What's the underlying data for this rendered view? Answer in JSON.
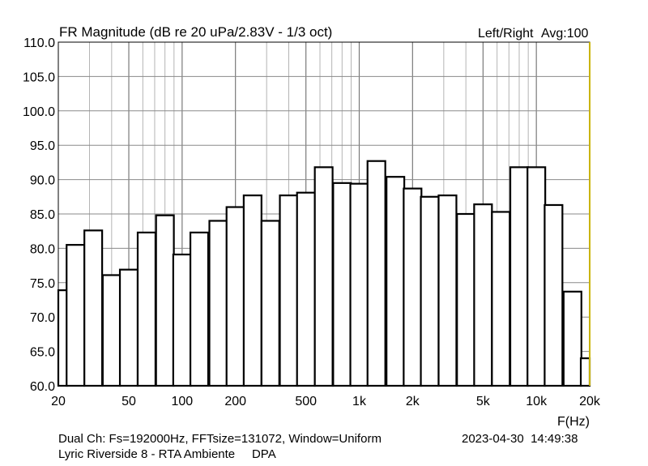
{
  "chart_data": {
    "type": "bar",
    "title": "FR Magnitude (dB re 20 uPa/2.83V - 1/3 oct)",
    "channel_label": "Left/Right",
    "avg_label": "Avg:100",
    "xlabel": "F(Hz)",
    "ylabel": "",
    "x_scale": "log",
    "xlim": [
      20,
      20000
    ],
    "ylim": [
      60,
      110
    ],
    "grid": true,
    "y_ticks": [
      60,
      65,
      70,
      75,
      80,
      85,
      90,
      95,
      100,
      105,
      110
    ],
    "y_tick_labels": [
      "60.0",
      "65.0",
      "70.0",
      "75.0",
      "80.0",
      "85.0",
      "90.0",
      "95.0",
      "100.0",
      "105.0",
      "110.0"
    ],
    "x_ticks": [
      20,
      50,
      100,
      200,
      500,
      1000,
      2000,
      5000,
      10000,
      20000
    ],
    "x_tick_labels": [
      "20",
      "50",
      "100",
      "200",
      "500",
      "1k",
      "2k",
      "5k",
      "10k",
      "20k"
    ],
    "series": [
      {
        "x": [
          20,
          25,
          31.5,
          40,
          50,
          63,
          80,
          100,
          125,
          160,
          200,
          250,
          315,
          400,
          500,
          630,
          800,
          1000,
          1250,
          1600,
          2000,
          2500,
          3150,
          4000,
          5000,
          6300,
          8000,
          10000,
          12500,
          16000,
          20000
        ],
        "values": [
          73.9,
          80.5,
          82.6,
          76.1,
          76.9,
          82.3,
          84.8,
          79.1,
          82.3,
          84.0,
          86.0,
          87.7,
          84.0,
          87.7,
          88.1,
          91.8,
          89.5,
          89.4,
          92.7,
          90.4,
          88.7,
          87.5,
          87.7,
          85.0,
          86.4,
          85.3,
          91.8,
          91.8,
          86.3,
          73.7,
          64.0
        ]
      }
    ]
  },
  "footer": {
    "line1": "Dual Ch: Fs=192000Hz, FFTsize=131072, Window=Uniform",
    "line2": "Lyric Riverside 8 - RTA Ambiente     DPA",
    "timestamp": "2023-04-30  14:49:38"
  }
}
